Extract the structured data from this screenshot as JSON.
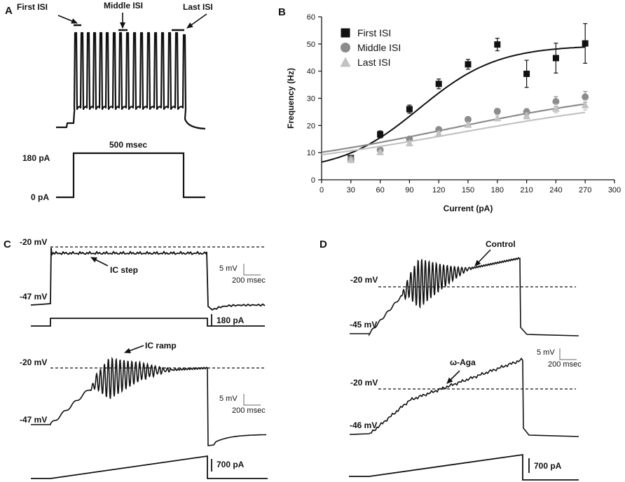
{
  "panels": {
    "a": "A",
    "b": "B",
    "c": "C",
    "d": "D"
  },
  "panel_a": {
    "first_isi": "First ISI",
    "middle_isi": "Middle ISI",
    "last_isi": "Last ISI",
    "duration": "500 msec",
    "amp_high": "180 pA",
    "amp_low": "0 pA"
  },
  "panel_c": {
    "step_label": "IC step",
    "ramp_label": "IC ramp",
    "step_top_v": "-20 mV",
    "step_rest_v": "-47 mV",
    "ramp_top_v": "-20 mV",
    "ramp_rest_v": "-47 mV",
    "scale_mv": "5 mV",
    "scale_ms": "200 msec",
    "scale_mv_2": "5 mV",
    "scale_ms_2": "200 msec",
    "step_current": "180 pA",
    "ramp_current": "700 pA"
  },
  "panel_d": {
    "control_label": "Control",
    "aga_label": "ω-Aga",
    "top_v_1": "-20 mV",
    "rest_v_1": "-45 mV",
    "top_v_2": "-20 mV",
    "rest_v_2": "-46 mV",
    "scale_mv": "5 mV",
    "scale_ms": "200 msec",
    "ramp_current": "700 pA"
  },
  "chart_data": {
    "type": "scatter",
    "xlabel": "Current (pA)",
    "ylabel": "Frequency (Hz)",
    "xlim": [
      0,
      300
    ],
    "ylim": [
      0,
      60
    ],
    "xticks": [
      0,
      30,
      60,
      90,
      120,
      150,
      180,
      210,
      240,
      270,
      300
    ],
    "yticks": [
      0,
      10,
      20,
      30,
      40,
      50,
      60
    ],
    "legend_position": "top-left",
    "series": [
      {
        "name": "First ISI",
        "marker": "square",
        "color": "#111111",
        "x": [
          30,
          60,
          90,
          120,
          150,
          180,
          210,
          240,
          270
        ],
        "y": [
          8,
          16.7,
          26,
          35.3,
          42.5,
          49.8,
          39,
          44.8,
          50.2
        ],
        "err": [
          1,
          1.3,
          1.5,
          1.8,
          1.8,
          2.3,
          5,
          5.5,
          7.3
        ],
        "fit": [
          3,
          49.5,
          100,
          40
        ]
      },
      {
        "name": "Middle ISI",
        "marker": "circle",
        "color": "#8c8c8c",
        "x": [
          30,
          60,
          90,
          120,
          150,
          180,
          210,
          240,
          270
        ],
        "y": [
          7.7,
          11,
          15,
          18.5,
          22.2,
          25.2,
          25,
          28.8,
          30.5
        ],
        "err": [
          0.6,
          0.6,
          0.7,
          0.8,
          0.9,
          1,
          1.2,
          1.8,
          2
        ],
        "fit": [
          2.5,
          35,
          130,
          110
        ]
      },
      {
        "name": "Last ISI",
        "marker": "triangle",
        "color": "#c2c2c2",
        "x": [
          30,
          60,
          90,
          120,
          150,
          180,
          210,
          240,
          270
        ],
        "y": [
          7.3,
          10.2,
          13.5,
          17,
          20.3,
          22.7,
          23.5,
          26.2,
          27.5
        ],
        "err": [
          0.5,
          0.5,
          0.6,
          0.7,
          0.8,
          0.9,
          1.1,
          1.6,
          1.8
        ],
        "fit": [
          2.5,
          32,
          140,
          115
        ]
      }
    ]
  }
}
